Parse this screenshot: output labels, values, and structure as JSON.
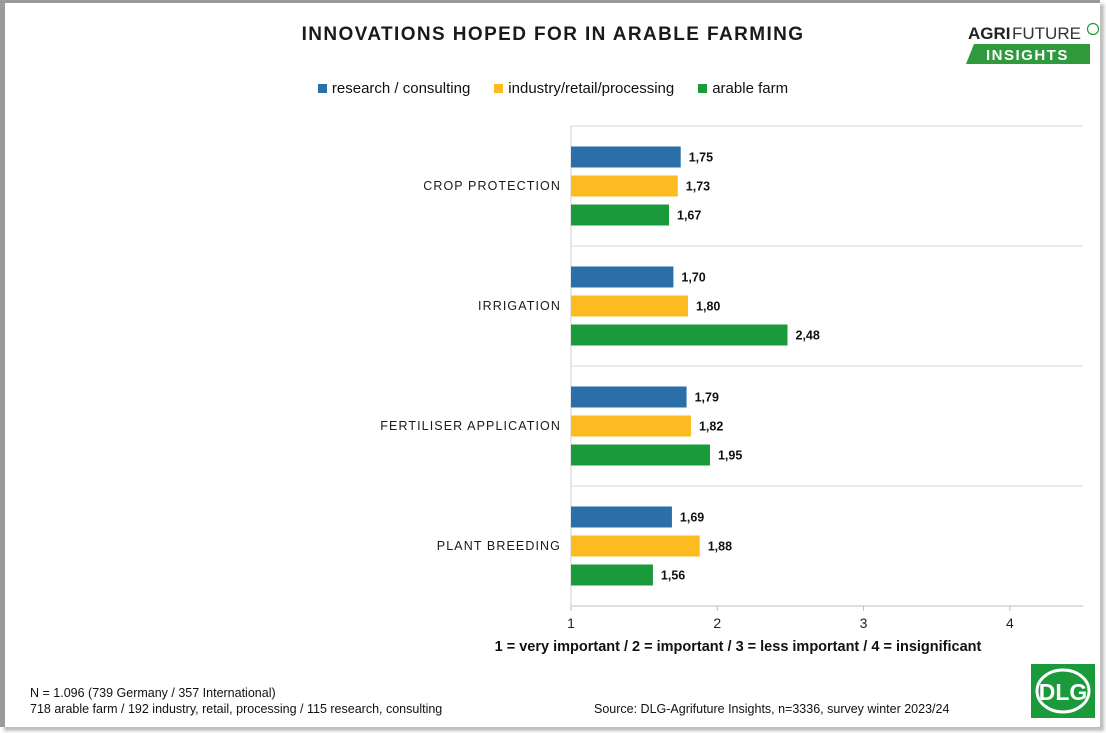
{
  "title": "INNOVATIONS HOPED FOR IN ARABLE FARMING",
  "logo": {
    "brand_bold": "AGRI",
    "brand_light": "FUTURE",
    "brand_sub": "INSIGHTS",
    "badge": "dlg"
  },
  "dlg_logo": {
    "text": "DLG",
    "color": "#1a9a3a"
  },
  "colors": {
    "research": "#2a6fa8",
    "industry": "#fbbb21",
    "farm": "#1a9a3a"
  },
  "chart_data": {
    "type": "bar",
    "orientation": "horizontal",
    "categories": [
      "CROP PROTECTION",
      "IRRIGATION",
      "FERTILISER APPLICATION",
      "PLANT BREEDING"
    ],
    "series": [
      {
        "name": "research / consulting",
        "color": "#2a6fa8",
        "values": [
          1.75,
          1.7,
          1.79,
          1.69
        ],
        "labels": [
          "1,75",
          "1,70",
          "1,79",
          "1,69"
        ]
      },
      {
        "name": "industry/retail/processing",
        "color": "#fbbb21",
        "values": [
          1.73,
          1.8,
          1.82,
          1.88
        ],
        "labels": [
          "1,73",
          "1,80",
          "1,82",
          "1,88"
        ]
      },
      {
        "name": "arable farm",
        "color": "#1a9a3a",
        "values": [
          1.67,
          2.48,
          1.95,
          1.56
        ],
        "labels": [
          "1,67",
          "2,48",
          "1,95",
          "1,56"
        ]
      }
    ],
    "xlim": [
      1,
      4.5
    ],
    "xticks": [
      1,
      2,
      3,
      4
    ],
    "xlabel": "1 = very important / 2 = important / 3 = less important / 4 = insignificant",
    "legend_position": "top"
  },
  "footer": {
    "n_line": "N =  1.096  (739 Germany / 357 International)",
    "breakdown": "718 arable farm / 192 industry, retail, processing / 115 research, consulting",
    "source": "Source: DLG-Agrifuture Insights, n=3336, survey winter 2023/24"
  }
}
